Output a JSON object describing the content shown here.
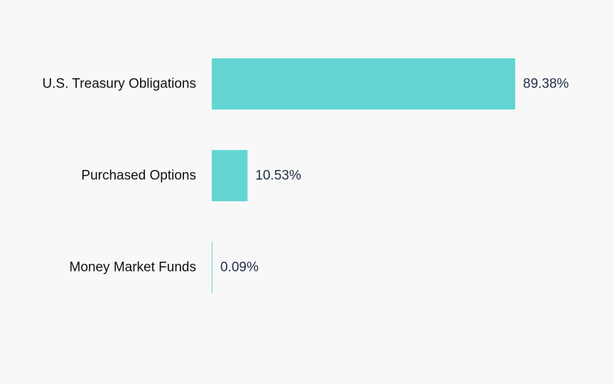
{
  "chart_data": {
    "type": "bar",
    "orientation": "horizontal",
    "categories": [
      "U.S. Treasury Obligations",
      "Purchased Options",
      "Money Market Funds"
    ],
    "values": [
      89.38,
      10.53,
      0.09
    ],
    "value_labels": [
      "89.38%",
      "10.53%",
      "0.09%"
    ],
    "xlim": [
      0,
      89.38
    ],
    "grid": false,
    "legend": "none",
    "colors": {
      "bar": "#63d6d4",
      "background": "#f8f8f8",
      "category_text": "#111111",
      "value_text": "#1f2d44"
    }
  }
}
